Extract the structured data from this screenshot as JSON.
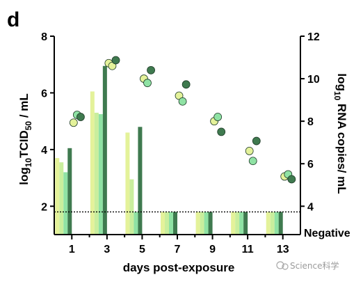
{
  "panel_label": "d",
  "watermark": "Science科学",
  "colors": {
    "light_yellow": "#e4f29a",
    "mint": "#8fe2a4",
    "dark_green": "#3f7a4f",
    "axis": "#000000"
  },
  "chart_data": {
    "type": "bar",
    "xlabel": "days post-exposure",
    "xlim": [
      0,
      14
    ],
    "x_ticks": [
      1,
      3,
      5,
      7,
      9,
      11,
      13
    ],
    "left_axis": {
      "label_prefix": "log",
      "label_sub": "10",
      "label_main": "TCID",
      "label_sub2": "50",
      "label_suffix": "/ mL",
      "ylim": [
        1,
        8
      ],
      "ticks": [
        2,
        4,
        6,
        8
      ]
    },
    "right_axis": {
      "label_prefix": "log",
      "label_sub": "10",
      "label_suffix": " RNA copies/ mL",
      "ylim": [
        2.6667,
        12
      ],
      "ticks": [
        4,
        6,
        8,
        10,
        12
      ],
      "bottom_label": "Negative"
    },
    "limit_of_detection": 1.8,
    "bars": {
      "description_series": [
        "light yellow",
        "pale green",
        "mint",
        "dark green"
      ],
      "groups": [
        {
          "x": 1,
          "values": [
            3.7,
            3.55,
            3.2,
            4.05
          ]
        },
        {
          "x": 3,
          "values": [
            6.05,
            5.3,
            5.25,
            6.95
          ]
        },
        {
          "x": 5,
          "values": [
            4.6,
            2.95,
            1.8,
            4.8
          ]
        },
        {
          "x": 7,
          "values": [
            1.8,
            1.8,
            1.8,
            1.8
          ]
        },
        {
          "x": 9,
          "values": [
            1.8,
            1.8,
            1.8,
            1.8
          ]
        },
        {
          "x": 11,
          "values": [
            1.8,
            1.8,
            1.8,
            1.8
          ]
        },
        {
          "x": 13,
          "values": [
            1.8,
            1.8,
            1.8,
            1.8
          ]
        }
      ]
    },
    "rna_points": [
      {
        "x": 1.1,
        "y": 7.93,
        "color": "light_yellow"
      },
      {
        "x": 1.3,
        "y": 8.3,
        "color": "mint"
      },
      {
        "x": 1.5,
        "y": 8.2,
        "color": "dark_green"
      },
      {
        "x": 3.1,
        "y": 10.73,
        "color": "light_yellow"
      },
      {
        "x": 3.3,
        "y": 10.6,
        "color": "light_yellow"
      },
      {
        "x": 3.5,
        "y": 10.87,
        "color": "dark_green"
      },
      {
        "x": 5.1,
        "y": 10.0,
        "color": "light_yellow"
      },
      {
        "x": 5.3,
        "y": 9.8,
        "color": "mint"
      },
      {
        "x": 5.5,
        "y": 10.4,
        "color": "dark_green"
      },
      {
        "x": 7.1,
        "y": 9.2,
        "color": "light_yellow"
      },
      {
        "x": 7.3,
        "y": 8.93,
        "color": "mint"
      },
      {
        "x": 7.5,
        "y": 9.73,
        "color": "dark_green"
      },
      {
        "x": 9.1,
        "y": 8.0,
        "color": "light_yellow"
      },
      {
        "x": 9.3,
        "y": 8.2,
        "color": "mint"
      },
      {
        "x": 9.5,
        "y": 7.5,
        "color": "dark_green"
      },
      {
        "x": 11.1,
        "y": 6.6,
        "color": "light_yellow"
      },
      {
        "x": 11.3,
        "y": 6.13,
        "color": "mint"
      },
      {
        "x": 11.5,
        "y": 7.07,
        "color": "dark_green"
      },
      {
        "x": 13.1,
        "y": 5.4,
        "color": "light_yellow"
      },
      {
        "x": 13.3,
        "y": 5.5,
        "color": "mint"
      },
      {
        "x": 13.5,
        "y": 5.27,
        "color": "dark_green"
      }
    ],
    "grid": false,
    "legend": "none"
  }
}
